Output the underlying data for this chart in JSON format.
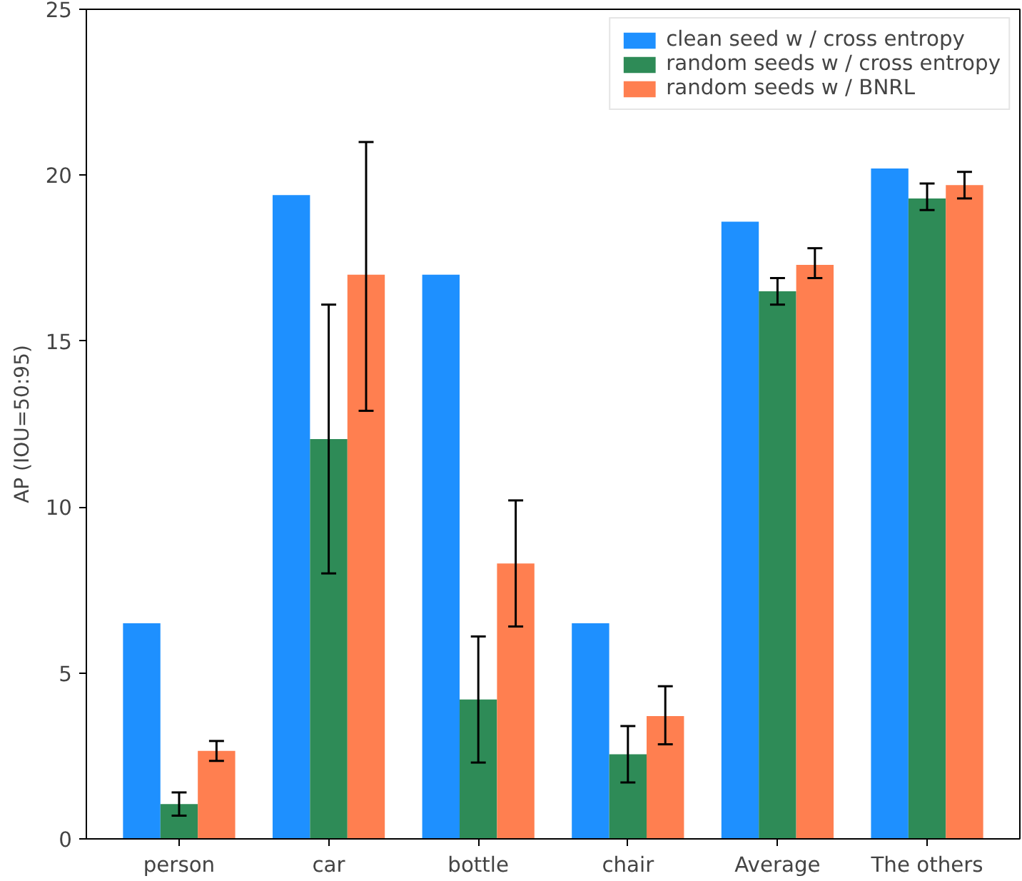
{
  "chart_data": {
    "type": "bar",
    "ylabel": "AP (IOU=50:95)",
    "categories": [
      "person",
      "car",
      "bottle",
      "chair",
      "Average",
      "The others"
    ],
    "series": [
      {
        "name": "clean seed w / cross entropy",
        "color": "#1e90ff",
        "values": [
          6.5,
          19.4,
          17.0,
          6.5,
          18.6,
          20.2
        ]
      },
      {
        "name": "random seeds w / cross entropy",
        "color": "#2e8b57",
        "values": [
          1.05,
          12.05,
          4.2,
          2.55,
          16.5,
          19.3
        ],
        "errors": [
          [
            0.7,
            1.4
          ],
          [
            8.0,
            16.1
          ],
          [
            2.3,
            6.1
          ],
          [
            1.7,
            3.4
          ],
          [
            16.1,
            16.9
          ],
          [
            18.95,
            19.75
          ]
        ]
      },
      {
        "name": "random seeds w / BNRL",
        "color": "#ff7f50",
        "values": [
          2.65,
          17.0,
          8.3,
          3.7,
          17.3,
          19.7
        ],
        "errors": [
          [
            2.35,
            2.95
          ],
          [
            12.9,
            21.0
          ],
          [
            6.4,
            10.2
          ],
          [
            2.85,
            4.6
          ],
          [
            16.9,
            17.8
          ],
          [
            19.3,
            20.1
          ]
        ]
      }
    ],
    "ylim": [
      0,
      25
    ],
    "yticks": [
      0,
      5,
      10,
      15,
      20,
      25
    ],
    "grid": false,
    "legend": "top right"
  }
}
